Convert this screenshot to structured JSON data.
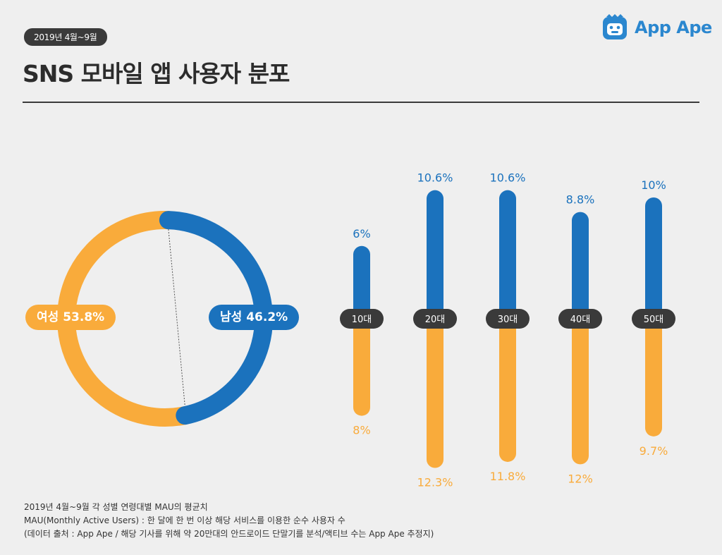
{
  "period_badge": "2019년 4월~9월",
  "title": "SNS 모바일 앱 사용자 분포",
  "logo_text": "App Ape",
  "colors": {
    "female": "#f9ab3b",
    "male": "#1b72bd",
    "age_badge": "#3a3a3a"
  },
  "chart_data": [
    {
      "type": "pie",
      "slices": [
        {
          "label": "여성",
          "value": 53.8,
          "display": "여성 53.8%"
        },
        {
          "label": "남성",
          "value": 46.2,
          "display": "남성 46.2%"
        }
      ]
    },
    {
      "type": "bar",
      "categories": [
        "10대",
        "20대",
        "30대",
        "40대",
        "50대"
      ],
      "series": [
        {
          "values": [
            6,
            10.6,
            10.6,
            8.8,
            10
          ],
          "labels": [
            "6%",
            "10.6%",
            "10.6%",
            "8.8%",
            "10%"
          ]
        },
        {
          "values": [
            8,
            12.3,
            11.8,
            12,
            9.7
          ],
          "labels": [
            "8%",
            "12.3%",
            "11.8%",
            "12%",
            "9.7%"
          ]
        }
      ]
    }
  ],
  "notes": [
    "2019년 4월~9월 각 성별 연령대별 MAU의 평균치",
    "MAU(Monthly Active Users) : 한 달에 한 번 이상 해당 서비스를 이용한 순수 사용자 수",
    "(데이터 출처 : App Ape / 해당 기사를 위해 약 20만대의 안드로이드 단말기를 분석/액티브 수는 App Ape 추정지)"
  ]
}
